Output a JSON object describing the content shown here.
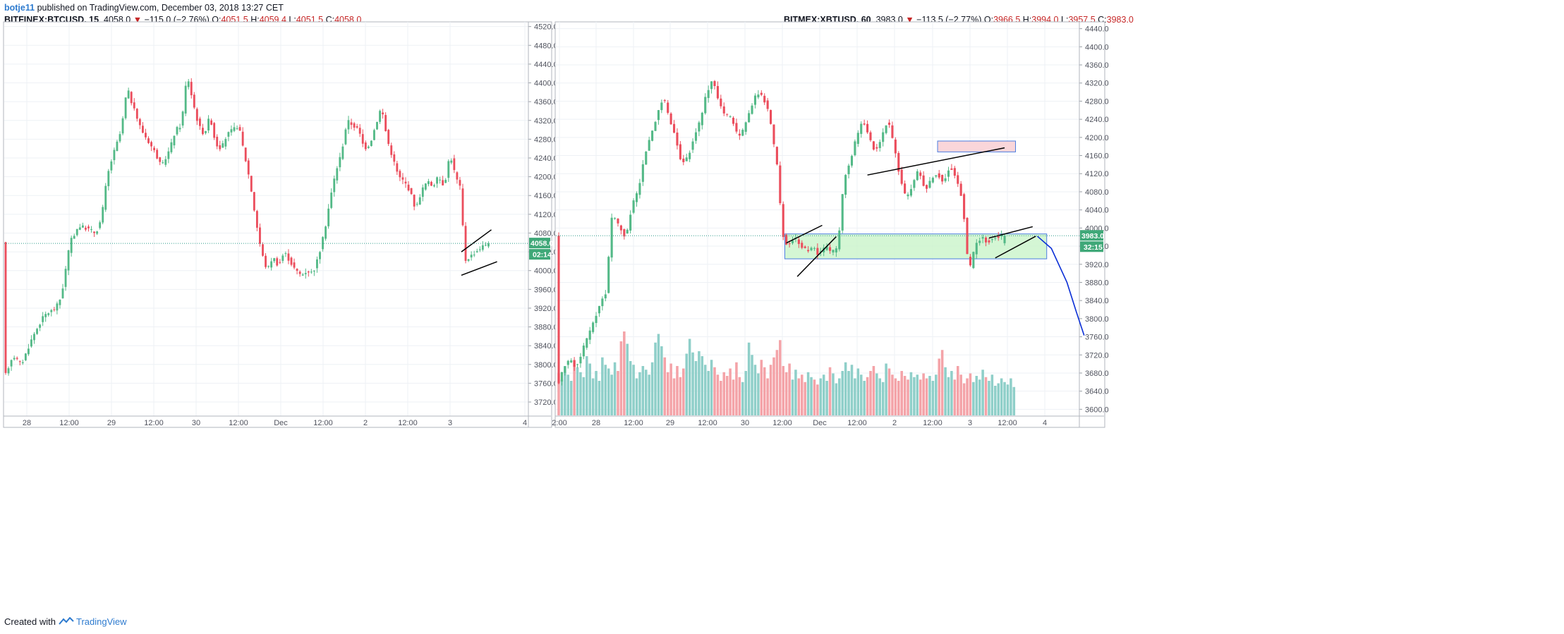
{
  "header": {
    "author": "botje11",
    "published_text": "published on TradingView.com, December 03, 2018 13:27 CET"
  },
  "footer": {
    "created_with": "Created with",
    "brand": "TradingView"
  },
  "colors": {
    "up": "#53b987",
    "down": "#eb4d5c",
    "up_vol": "#8fcfc9",
    "down_vol": "#f4a3a8",
    "grid": "#eef1f5",
    "axis": "#50535e",
    "green_zone": "#ccf5cc",
    "red_zone": "#f9d2d6",
    "zone_border": "#4a7de0",
    "projection": "#0b2fd6"
  },
  "chart_data": [
    {
      "type": "candlestick",
      "panel": "left",
      "symbol": "BITFINEX:BTCUSD, 15",
      "legend": {
        "symbol": "BITFINEX:BTCUSD, 15",
        "last": "4058.0",
        "change": "−115.0 (−2.76%)",
        "open": "4051.5",
        "high": "4059.4",
        "low": "4051.5",
        "close": "4058.0"
      },
      "ylim": [
        3690,
        4530
      ],
      "y_ticks": [
        "4520.0",
        "4480.0",
        "4440.0",
        "4400.0",
        "4360.0",
        "4320.0",
        "4280.0",
        "4240.0",
        "4200.0",
        "4160.0",
        "4120.0",
        "4080.0",
        "4040.0",
        "4000.0",
        "3960.0",
        "3920.0",
        "3880.0",
        "3840.0",
        "3800.0",
        "3760.0",
        "3720.0"
      ],
      "x_ticks": [
        "28",
        "12:00",
        "29",
        "12:00",
        "30",
        "12:00",
        "Dec",
        "12:00",
        "2",
        "12:00",
        "3",
        "4"
      ],
      "price_label": "4058.0",
      "countdown_label": "02:14",
      "close_path": [
        [
          0,
          3770
        ],
        [
          3,
          3820
        ],
        [
          6,
          3800
        ],
        [
          10,
          3860
        ],
        [
          14,
          3905
        ],
        [
          18,
          3920
        ],
        [
          20,
          3945
        ],
        [
          23,
          4060
        ],
        [
          26,
          4095
        ],
        [
          29,
          4090
        ],
        [
          32,
          4080
        ],
        [
          34,
          4110
        ],
        [
          36,
          4200
        ],
        [
          38,
          4245
        ],
        [
          41,
          4300
        ],
        [
          43,
          4390
        ],
        [
          45,
          4350
        ],
        [
          48,
          4300
        ],
        [
          50,
          4280
        ],
        [
          53,
          4250
        ],
        [
          55,
          4220
        ],
        [
          58,
          4260
        ],
        [
          60,
          4300
        ],
        [
          62,
          4310
        ],
        [
          64,
          4420
        ],
        [
          66,
          4360
        ],
        [
          68,
          4310
        ],
        [
          70,
          4290
        ],
        [
          72,
          4330
        ],
        [
          74,
          4270
        ],
        [
          76,
          4260
        ],
        [
          78,
          4290
        ],
        [
          80,
          4300
        ],
        [
          82,
          4310
        ],
        [
          84,
          4250
        ],
        [
          86,
          4190
        ],
        [
          88,
          4110
        ],
        [
          90,
          4040
        ],
        [
          92,
          4000
        ],
        [
          94,
          4030
        ],
        [
          96,
          4010
        ],
        [
          98,
          4040
        ],
        [
          100,
          4020
        ],
        [
          102,
          4000
        ],
        [
          104,
          3990
        ],
        [
          106,
          4000
        ],
        [
          108,
          3995
        ],
        [
          110,
          4030
        ],
        [
          112,
          4080
        ],
        [
          114,
          4150
        ],
        [
          116,
          4210
        ],
        [
          118,
          4250
        ],
        [
          120,
          4320
        ],
        [
          122,
          4310
        ],
        [
          124,
          4300
        ],
        [
          126,
          4260
        ],
        [
          128,
          4270
        ],
        [
          130,
          4310
        ],
        [
          132,
          4350
        ],
        [
          134,
          4280
        ],
        [
          136,
          4240
        ],
        [
          138,
          4200
        ],
        [
          140,
          4190
        ],
        [
          142,
          4170
        ],
        [
          144,
          4130
        ],
        [
          146,
          4170
        ],
        [
          148,
          4190
        ],
        [
          150,
          4180
        ],
        [
          152,
          4200
        ],
        [
          154,
          4180
        ],
        [
          156,
          4250
        ],
        [
          158,
          4200
        ],
        [
          160,
          4170
        ],
        [
          161,
          4020
        ],
        [
          163,
          4030
        ],
        [
          165,
          4040
        ],
        [
          167,
          4050
        ],
        [
          169,
          4058
        ]
      ],
      "annotations": [
        {
          "type": "trendline",
          "from": [
            159.5,
            4040
          ],
          "to": [
            170,
            4087
          ]
        },
        {
          "type": "trendline",
          "from": [
            159.5,
            3990
          ],
          "to": [
            172,
            4019
          ]
        }
      ]
    },
    {
      "type": "candlestick",
      "panel": "right",
      "symbol": "BITMEX:XBTUSD, 60",
      "legend": {
        "symbol": "BITMEX:XBTUSD, 60",
        "last": "3983.0",
        "change": "−113.5 (−2.77%)",
        "open": "3966.5",
        "high": "3994.0",
        "low": "3957.5",
        "close": "3983.0"
      },
      "ylim": [
        3585,
        4455
      ],
      "y_ticks": [
        "4440.0",
        "4400.0",
        "4360.0",
        "4320.0",
        "4280.0",
        "4240.0",
        "4200.0",
        "4160.0",
        "4120.0",
        "4080.0",
        "4040.0",
        "4000.0",
        "3960.0",
        "3920.0",
        "3880.0",
        "3840.0",
        "3800.0",
        "3760.0",
        "3720.0",
        "3680.0",
        "3640.0",
        "3600.0"
      ],
      "x_ticks": [
        "2:00",
        "28",
        "12:00",
        "29",
        "12:00",
        "30",
        "12:00",
        "Dec",
        "12:00",
        "2",
        "12:00",
        "3",
        "12:00",
        "4"
      ],
      "price_label": "3983.0",
      "countdown_label": "32:15",
      "close_path": [
        [
          0,
          3650
        ],
        [
          2,
          3690
        ],
        [
          4,
          3710
        ],
        [
          6,
          3690
        ],
        [
          8,
          3730
        ],
        [
          10,
          3760
        ],
        [
          12,
          3800
        ],
        [
          14,
          3840
        ],
        [
          16,
          3860
        ],
        [
          17,
          4010
        ],
        [
          18,
          4030
        ],
        [
          20,
          4000
        ],
        [
          22,
          3980
        ],
        [
          24,
          4050
        ],
        [
          26,
          4080
        ],
        [
          28,
          4160
        ],
        [
          30,
          4200
        ],
        [
          32,
          4250
        ],
        [
          34,
          4290
        ],
        [
          36,
          4240
        ],
        [
          38,
          4200
        ],
        [
          40,
          4140
        ],
        [
          42,
          4160
        ],
        [
          44,
          4200
        ],
        [
          46,
          4240
        ],
        [
          48,
          4300
        ],
        [
          50,
          4330
        ],
        [
          52,
          4270
        ],
        [
          54,
          4250
        ],
        [
          56,
          4240
        ],
        [
          58,
          4200
        ],
        [
          60,
          4220
        ],
        [
          62,
          4260
        ],
        [
          64,
          4300
        ],
        [
          66,
          4290
        ],
        [
          68,
          4250
        ],
        [
          70,
          4160
        ],
        [
          71,
          4120
        ],
        [
          72,
          3990
        ],
        [
          74,
          3960
        ],
        [
          76,
          3980
        ],
        [
          78,
          3960
        ],
        [
          80,
          3950
        ],
        [
          82,
          3960
        ],
        [
          84,
          3940
        ],
        [
          86,
          3960
        ],
        [
          88,
          3945
        ],
        [
          90,
          3960
        ],
        [
          92,
          4110
        ],
        [
          94,
          4150
        ],
        [
          96,
          4200
        ],
        [
          98,
          4240
        ],
        [
          100,
          4200
        ],
        [
          102,
          4170
        ],
        [
          104,
          4200
        ],
        [
          106,
          4240
        ],
        [
          108,
          4180
        ],
        [
          110,
          4110
        ],
        [
          112,
          4060
        ],
        [
          114,
          4100
        ],
        [
          116,
          4130
        ],
        [
          118,
          4080
        ],
        [
          120,
          4110
        ],
        [
          122,
          4120
        ],
        [
          124,
          4100
        ],
        [
          126,
          4140
        ],
        [
          128,
          4110
        ],
        [
          130,
          4060
        ],
        [
          132,
          3900
        ],
        [
          134,
          3960
        ],
        [
          136,
          3980
        ],
        [
          138,
          3970
        ],
        [
          140,
          3980
        ],
        [
          142,
          3983
        ]
      ],
      "volume": [
        34,
        29,
        40,
        33,
        28,
        45,
        39,
        35,
        31,
        48,
        42,
        30,
        36,
        28,
        47,
        41,
        38,
        33,
        43,
        36,
        60,
        68,
        58,
        44,
        41,
        30,
        35,
        40,
        37,
        33,
        43,
        59,
        66,
        56,
        47,
        35,
        42,
        30,
        40,
        31,
        38,
        50,
        62,
        51,
        44,
        52,
        48,
        41,
        36,
        45,
        39,
        33,
        28,
        35,
        32,
        38,
        29,
        43,
        31,
        27,
        36,
        59,
        49,
        41,
        34,
        45,
        39,
        30,
        41,
        47,
        53,
        61,
        40,
        35,
        42,
        29,
        37,
        30,
        33,
        27,
        35,
        31,
        29,
        25,
        30,
        33,
        28,
        39,
        34,
        26,
        30,
        36,
        43,
        36,
        41,
        30,
        38,
        33,
        28,
        31,
        36,
        40,
        34,
        30,
        27,
        42,
        38,
        33,
        30,
        28,
        36,
        32,
        29,
        35,
        31,
        33,
        29,
        34,
        30,
        32,
        28,
        33,
        46,
        53,
        39,
        31,
        36,
        29,
        40,
        33,
        26,
        30,
        34,
        27,
        32,
        29,
        37,
        31,
        28,
        33,
        24,
        26,
        30,
        27,
        25,
        30,
        23
      ],
      "annotations": [
        {
          "type": "rect",
          "name": "demand-zone",
          "x": [
            72.5,
            156.5
          ],
          "y": [
            3932,
            3987
          ]
        },
        {
          "type": "rect",
          "name": "supply-zone",
          "x": [
            121.5,
            146.5
          ],
          "y": [
            4168,
            4192
          ]
        },
        {
          "type": "trendline",
          "from": [
            73,
            3967
          ],
          "to": [
            84.5,
            4006
          ]
        },
        {
          "type": "trendline",
          "from": [
            76.5,
            3893
          ],
          "to": [
            89,
            3981
          ]
        },
        {
          "type": "trendline",
          "from": [
            99,
            4117
          ],
          "to": [
            143,
            4177
          ]
        },
        {
          "type": "trendline",
          "from": [
            138,
            3978
          ],
          "to": [
            152,
            4003
          ]
        },
        {
          "type": "trendline",
          "from": [
            140,
            3934
          ],
          "to": [
            153,
            3982
          ]
        },
        {
          "type": "projection",
          "points": [
            [
              153.5,
              3982
            ],
            [
              158,
              3955
            ],
            [
              163,
              3880
            ],
            [
              166,
              3815
            ],
            [
              168.5,
              3763
            ]
          ]
        }
      ]
    }
  ]
}
